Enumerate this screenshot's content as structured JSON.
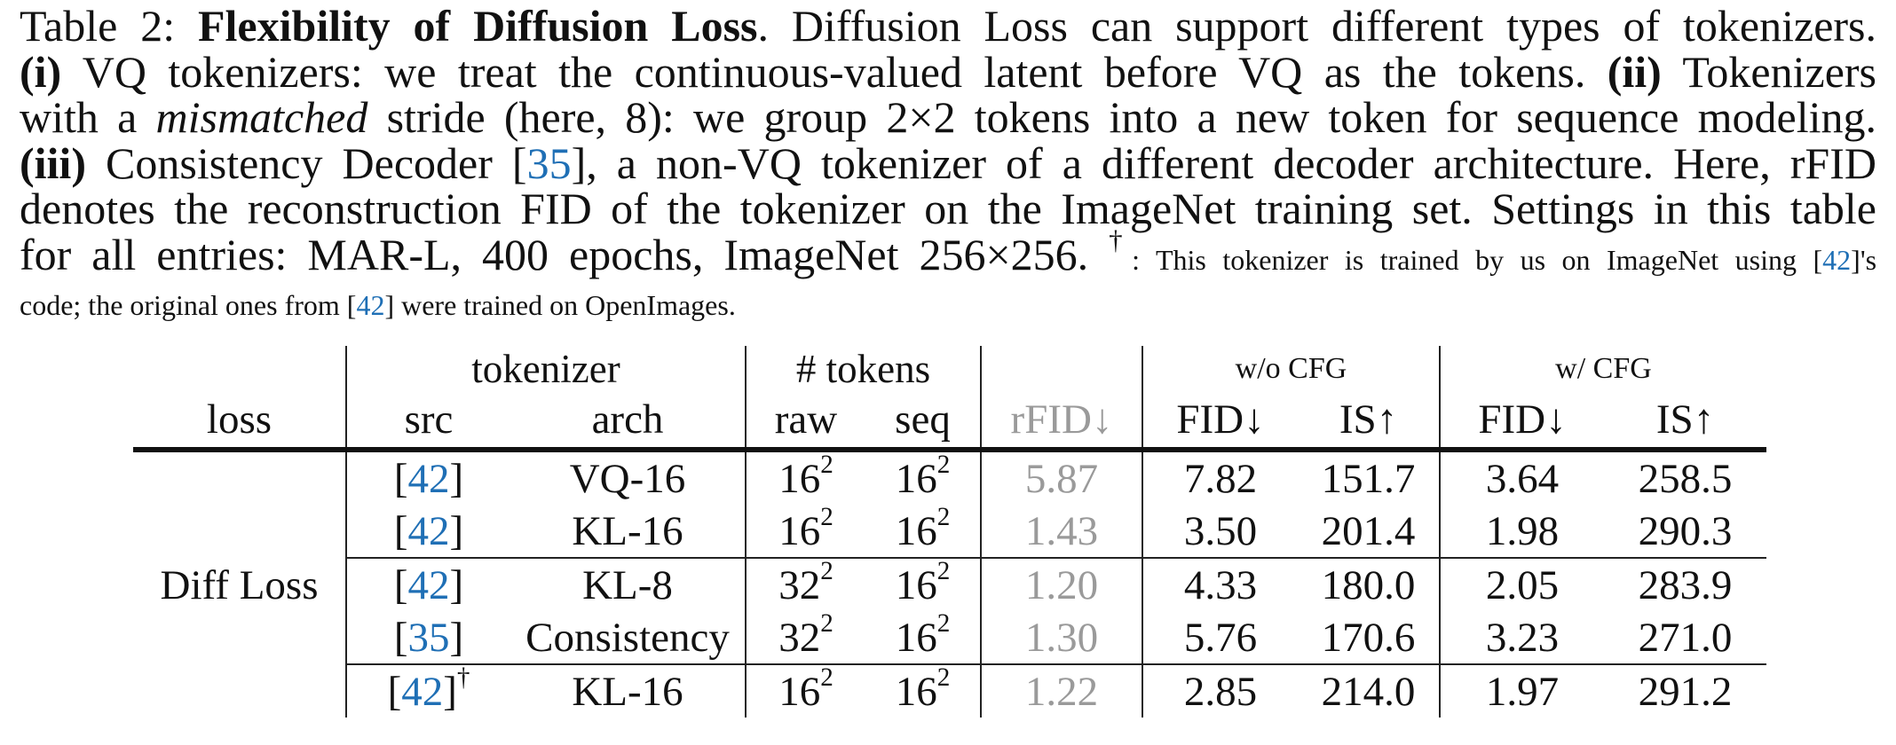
{
  "caption": {
    "label": "Table 2:",
    "title": "Flexibility of Diffusion Loss",
    "sentence1": ". Diffusion Loss can support different types of tokenizers.",
    "i_label": "(i)",
    "i_text": " VQ tokenizers: we treat the continuous-valued latent before VQ as the tokens.",
    "ii_label": "(ii)",
    "ii_text_a": " Tokenizers",
    "ii_text_b": "with a",
    "ii_emph": "mismatched",
    "ii_text_c": "stride (here, 8): we group 2×2 tokens into a new token for sequence modeling.",
    "iii_label": "(iii)",
    "iii_text_a": " Consistency Decoder [",
    "iii_cite": "35",
    "iii_text_b": "], a non-VQ tokenizer of a different decoder architecture. Here, rFID",
    "line5": "denotes the reconstruction FID of the tokenizer on the ImageNet training set. Settings in this table",
    "line6_main": "for all entries: MAR-L, 400 epochs, ImageNet 256×256.",
    "dagger": "†",
    "note_a": ": This tokenizer is trained by us on ImageNet using [",
    "note_cite1": "42",
    "note_b": "]'s",
    "note_c": "code; the original ones from [",
    "note_cite2": "42",
    "note_d": "] were trained on OpenImages."
  },
  "table": {
    "group_tokenizer": "tokenizer",
    "group_tokens": "# tokens",
    "group_wo_cfg": "w/o CFG",
    "group_w_cfg": "w/ CFG",
    "col_loss": "loss",
    "col_src": "src",
    "col_arch": "arch",
    "col_raw": "raw",
    "col_seq": "seq",
    "col_rfid": "rFID↓",
    "col_fid1": "FID↓",
    "col_is1": "IS↑",
    "col_fid2": "FID↓",
    "col_is2": "IS↑",
    "loss_label": "Diff Loss",
    "rows": [
      {
        "src": "42",
        "src_mark": "",
        "arch": "VQ-16",
        "raw": "16",
        "seq": "16",
        "rfid": "5.87",
        "fid1": "7.82",
        "is1": "151.7",
        "fid2": "3.64",
        "is2": "258.5"
      },
      {
        "src": "42",
        "src_mark": "",
        "arch": "KL-16",
        "raw": "16",
        "seq": "16",
        "rfid": "1.43",
        "fid1": "3.50",
        "is1": "201.4",
        "fid2": "1.98",
        "is2": "290.3"
      },
      {
        "src": "42",
        "src_mark": "",
        "arch": "KL-8",
        "raw": "32",
        "seq": "16",
        "rfid": "1.20",
        "fid1": "4.33",
        "is1": "180.0",
        "fid2": "2.05",
        "is2": "283.9"
      },
      {
        "src": "35",
        "src_mark": "",
        "arch": "Consistency",
        "raw": "32",
        "seq": "16",
        "rfid": "1.30",
        "fid1": "5.76",
        "is1": "170.6",
        "fid2": "3.23",
        "is2": "271.0"
      },
      {
        "src": "42",
        "src_mark": "†",
        "arch": "KL-16",
        "raw": "16",
        "seq": "16",
        "rfid": "1.22",
        "fid1": "2.85",
        "is1": "214.0",
        "fid2": "1.97",
        "is2": "291.2"
      }
    ],
    "exponent": "2"
  }
}
